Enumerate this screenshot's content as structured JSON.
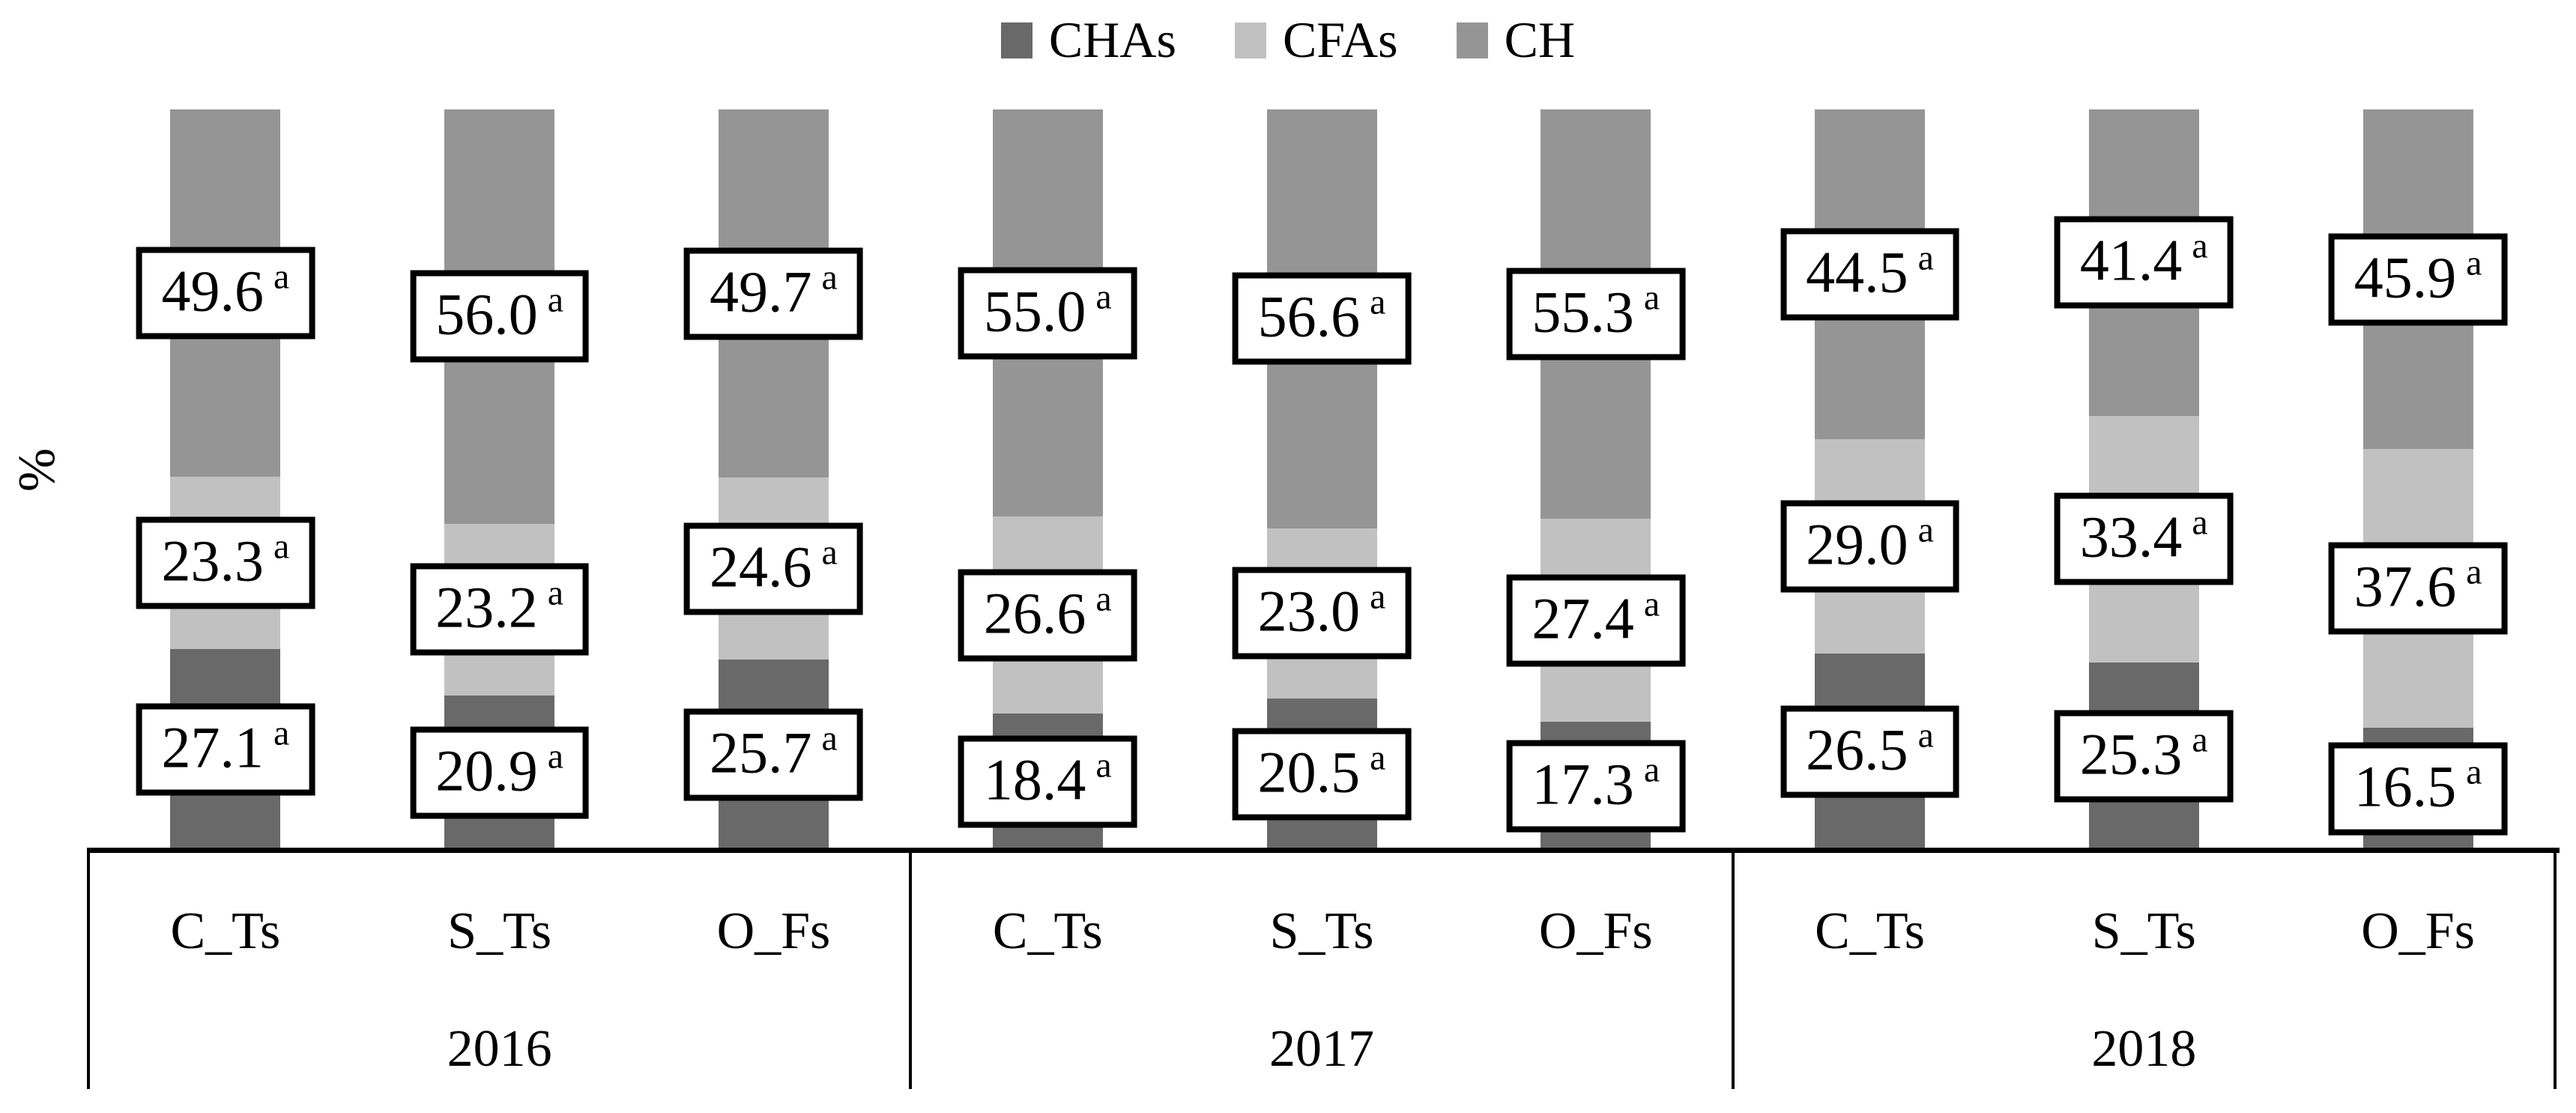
{
  "figure": {
    "background": "#ffffff",
    "line_color": "#000000"
  },
  "legend": {
    "position": "top-center",
    "items": [
      {
        "label": "CHAs",
        "color": "#696969"
      },
      {
        "label": "CFAs",
        "color": "#c1c1c1"
      },
      {
        "label": "CH",
        "color": "#959595"
      }
    ]
  },
  "chart_data": {
    "type": "bar",
    "variant": "100%-stacked-column",
    "ylabel": "%",
    "ylim": [
      0,
      100
    ],
    "grid": false,
    "legend_position": "top",
    "legend_entries": [
      "CHAs",
      "CFAs",
      "CH"
    ],
    "groups": [
      {
        "label": "2016",
        "categories": [
          "C_Ts",
          "S_Ts",
          "O_Fs"
        ]
      },
      {
        "label": "2017",
        "categories": [
          "C_Ts",
          "S_Ts",
          "O_Fs"
        ]
      },
      {
        "label": "2018",
        "categories": [
          "C_Ts",
          "S_Ts",
          "O_Fs"
        ]
      }
    ],
    "categories": [
      "C_Ts",
      "S_Ts",
      "O_Fs",
      "C_Ts",
      "S_Ts",
      "O_Fs",
      "C_Ts",
      "S_Ts",
      "O_Fs"
    ],
    "stack_order_bottom_to_top": [
      "CHAs",
      "CFAs",
      "CH"
    ],
    "series": [
      {
        "name": "CHAs",
        "color": "#696969",
        "values": [
          27.1,
          20.9,
          25.7,
          18.4,
          20.5,
          17.3,
          26.5,
          25.3,
          16.5
        ]
      },
      {
        "name": "CFAs",
        "color": "#c1c1c1",
        "values": [
          23.3,
          23.2,
          24.6,
          26.6,
          23.0,
          27.4,
          29.0,
          33.4,
          37.6
        ]
      },
      {
        "name": "CH",
        "color": "#959595",
        "values": [
          49.6,
          56.0,
          49.7,
          55.0,
          56.6,
          55.3,
          44.5,
          41.4,
          45.9
        ]
      }
    ],
    "data_label_superscript": "a",
    "data_label_decimals": 1,
    "data_labels_boxed": true
  }
}
